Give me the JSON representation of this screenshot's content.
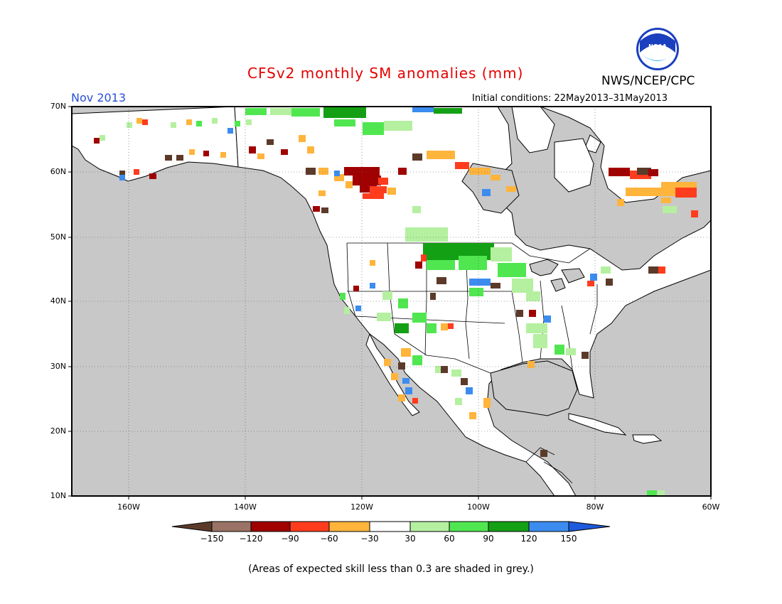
{
  "header": {
    "title": "CFSv2 monthly SM anomalies (mm)",
    "agency": "NWS/NCEP/CPC",
    "logo_text": "NOAA",
    "month": "Nov 2013",
    "initial_conditions": "Initial conditions: 22May2013–31May2013"
  },
  "axes": {
    "lat_labels": [
      "70N",
      "60N",
      "50N",
      "40N",
      "30N",
      "20N",
      "10N"
    ],
    "lon_labels": [
      "160W",
      "140W",
      "120W",
      "100W",
      "80W",
      "60W"
    ]
  },
  "colorbar": {
    "labels": [
      "−150",
      "−120",
      "−90",
      "−60",
      "−30",
      "30",
      "60",
      "90",
      "120",
      "150"
    ],
    "colors": [
      "#5c3a2a",
      "#9a7366",
      "#a00000",
      "#ff3c1e",
      "#ffb43c",
      "#ffffff",
      "#b4f0a0",
      "#50e650",
      "#14a014",
      "#3c8cf0",
      "#1e5adc"
    ]
  },
  "colors": {
    "grey_skill_mask": "#c8c8c8",
    "land_boundary": "#000000",
    "title": "#e60000",
    "month": "#2a4fd6"
  },
  "footnote": "(Areas of expected skill less than 0.3 are shaded in grey.)"
}
